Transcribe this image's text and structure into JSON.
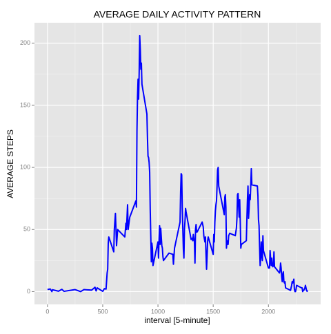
{
  "chart_data": {
    "type": "line",
    "title": "AVERAGE DAILY ACTIVITY PATTERN",
    "x_label": "interval [5-minute]",
    "y_label": "AVERAGE STEPS",
    "x": [
      0,
      25,
      40,
      45,
      100,
      130,
      150,
      250,
      300,
      330,
      400,
      430,
      440,
      450,
      500,
      515,
      530,
      540,
      545,
      550,
      555,
      600,
      605,
      615,
      625,
      635,
      700,
      710,
      715,
      725,
      730,
      745,
      800,
      805,
      810,
      815,
      820,
      825,
      830,
      835,
      840,
      845,
      850,
      855,
      900,
      905,
      910,
      915,
      920,
      925,
      930,
      935,
      940,
      945,
      950,
      955,
      1000,
      1005,
      1010,
      1015,
      1020,
      1025,
      1035,
      1040,
      1045,
      1050,
      1100,
      1135,
      1140,
      1150,
      1200,
      1205,
      1210,
      1215,
      1220,
      1230,
      1235,
      1240,
      1245,
      1250,
      1255,
      1300,
      1310,
      1315,
      1320,
      1330,
      1335,
      1340,
      1345,
      1350,
      1355,
      1400,
      1410,
      1415,
      1425,
      1430,
      1435,
      1440,
      1445,
      1450,
      1455,
      1500,
      1505,
      1510,
      1515,
      1520,
      1525,
      1530,
      1535,
      1540,
      1545,
      1550,
      1600,
      1605,
      1610,
      1615,
      1620,
      1625,
      1630,
      1635,
      1640,
      1645,
      1650,
      1700,
      1710,
      1715,
      1720,
      1725,
      1730,
      1735,
      1740,
      1745,
      1750,
      1755,
      1800,
      1805,
      1810,
      1815,
      1820,
      1825,
      1830,
      1835,
      1840,
      1845,
      1850,
      1900,
      1905,
      1910,
      1915,
      1920,
      1925,
      1930,
      1935,
      1940,
      1945,
      1950,
      1955,
      2000,
      2005,
      2010,
      2015,
      2020,
      2025,
      2030,
      2035,
      2040,
      2045,
      2050,
      2055,
      2100,
      2105,
      2110,
      2115,
      2120,
      2125,
      2130,
      2135,
      2140,
      2145,
      2150,
      2155,
      2200,
      2205,
      2210,
      2215,
      2220,
      2225,
      2230,
      2235,
      2240,
      2245,
      2250,
      2255,
      2300,
      2305,
      2310,
      2315,
      2320,
      2325,
      2330,
      2335,
      2340,
      2345,
      2350,
      2355
    ],
    "series": [
      {
        "name": "AVERAGE STEPS",
        "color": "#0000ff",
        "values": [
          1.7,
          2.1,
          0,
          1.5,
          0.3,
          1.8,
          0.2,
          1.6,
          0,
          1.6,
          1.2,
          3.5,
          0.5,
          3.0,
          0.2,
          2.4,
          2.0,
          15,
          18,
          39,
          44,
          32,
          50,
          63,
          37,
          50,
          44,
          55,
          50,
          70,
          50,
          60,
          73,
          68,
          130,
          157,
          171,
          155,
          177,
          206,
          195,
          179,
          184,
          167,
          143,
          124,
          109,
          108,
          104,
          96,
          66,
          45,
          24,
          39,
          35,
          21,
          40,
          27,
          42,
          53,
          38,
          51,
          37,
          35,
          28,
          25,
          31,
          30,
          22,
          35,
          56,
          80,
          95,
          94,
          67,
          34,
          27,
          51,
          57,
          67,
          64,
          42,
          43,
          41,
          46,
          40,
          23,
          50,
          54,
          48,
          48,
          56,
          52,
          45,
          40,
          44,
          30,
          18,
          29,
          41,
          44,
          30,
          46,
          40,
          56,
          65,
          70,
          73,
          85,
          98,
          100,
          85,
          62,
          76,
          78,
          68,
          35,
          41,
          38,
          38,
          45,
          46,
          47,
          45,
          51,
          59,
          78,
          79,
          69,
          60,
          74,
          56,
          35,
          38,
          41,
          58,
          74,
          85,
          59,
          67,
          78,
          74,
          85,
          99,
          86,
          85,
          77,
          58,
          53,
          36,
          21,
          27,
          40,
          30,
          25,
          45,
          33,
          19,
          19,
          19,
          33,
          26,
          21,
          27,
          21,
          20,
          21,
          32,
          20,
          15,
          17,
          23,
          19,
          12,
          8,
          14,
          16,
          8,
          7,
          8,
          3,
          1,
          3,
          5,
          8,
          7,
          8,
          10,
          2,
          0,
          0,
          2,
          5,
          3,
          3,
          0,
          1,
          1,
          2,
          3,
          5,
          3,
          1,
          0.2,
          1
        ]
      }
    ],
    "xlim": [
      -117.75,
      2472.75
    ],
    "xticks": [
      0,
      500,
      1000,
      1500,
      2000
    ],
    "xminor": [
      250,
      750,
      1250,
      1750,
      2250
    ],
    "ylim": [
      -10.3,
      216.5
    ],
    "yticks": [
      0,
      50,
      100,
      150,
      200
    ],
    "yminor": [
      25,
      75,
      125,
      175
    ],
    "grid": true
  }
}
